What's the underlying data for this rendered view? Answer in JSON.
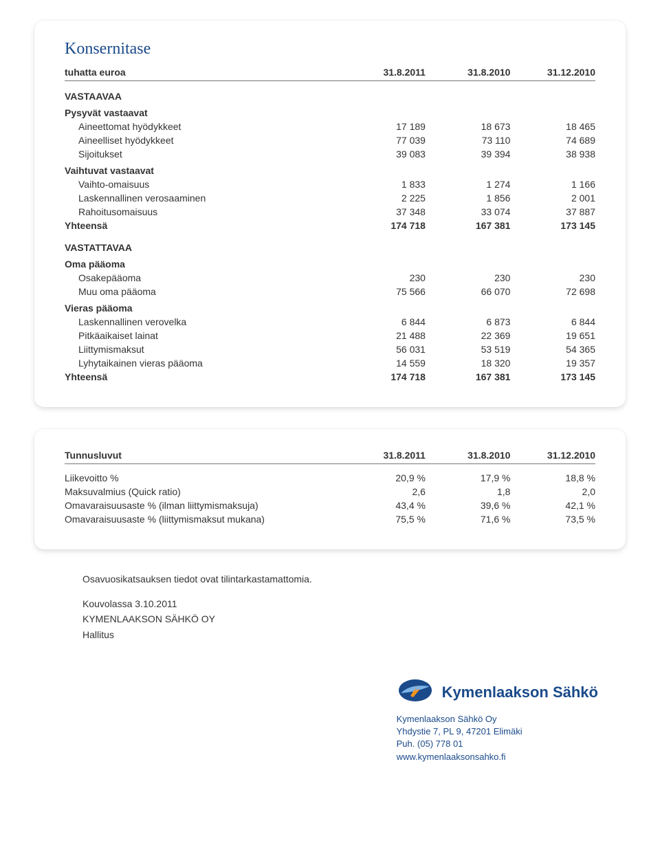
{
  "card1": {
    "title": "Konsernitase",
    "header": [
      "tuhatta euroa",
      "31.8.2011",
      "31.8.2010",
      "31.12.2010"
    ],
    "sections": [
      {
        "head": "VASTAAVAA",
        "groups": [
          {
            "label": "Pysyvät vastaavat",
            "rows": [
              [
                "Aineettomat hyödykkeet",
                "17 189",
                "18 673",
                "18 465"
              ],
              [
                "Aineelliset hyödykkeet",
                "77 039",
                "73 110",
                "74 689"
              ],
              [
                "Sijoitukset",
                "39 083",
                "39 394",
                "38 938"
              ]
            ]
          },
          {
            "label": "Vaihtuvat vastaavat",
            "rows": [
              [
                "Vaihto-omaisuus",
                "1 833",
                "1 274",
                "1 166"
              ],
              [
                "Laskennallinen verosaaminen",
                "2 225",
                "1 856",
                "2 001"
              ],
              [
                "Rahoitusomaisuus",
                "37 348",
                "33 074",
                "37 887"
              ]
            ]
          }
        ],
        "total": [
          "Yhteensä",
          "174 718",
          "167 381",
          "173 145"
        ]
      },
      {
        "head": "VASTATTAVAA",
        "groups": [
          {
            "label": "Oma pääoma",
            "rows": [
              [
                "Osakepääoma",
                "230",
                "230",
                "230"
              ],
              [
                "Muu oma pääoma",
                "75 566",
                "66 070",
                "72 698"
              ]
            ]
          },
          {
            "label": "Vieras pääoma",
            "rows": [
              [
                "Laskennallinen verovelka",
                "6 844",
                "6 873",
                "6 844"
              ],
              [
                "Pitkäaikaiset lainat",
                "21 488",
                "22 369",
                "19 651"
              ],
              [
                "Liittymismaksut",
                "56 031",
                "53 519",
                "54 365"
              ],
              [
                "Lyhytaikainen vieras pääoma",
                "14 559",
                "18 320",
                "19 357"
              ]
            ]
          }
        ],
        "total": [
          "Yhteensä",
          "174 718",
          "167 381",
          "173 145"
        ]
      }
    ]
  },
  "card2": {
    "header": [
      "Tunnusluvut",
      "31.8.2011",
      "31.8.2010",
      "31.12.2010"
    ],
    "rows": [
      [
        "Liikevoitto %",
        "20,9 %",
        "17,9 %",
        "18,8 %"
      ],
      [
        "Maksuvalmius (Quick ratio)",
        "2,6",
        "1,8",
        "2,0"
      ],
      [
        "Omavaraisuusaste % (ilman liittymismaksuja)",
        "43,4 %",
        "39,6 %",
        "42,1 %"
      ],
      [
        "Omavaraisuusaste % (liittymismaksut mukana)",
        "75,5 %",
        "71,6 %",
        "73,5 %"
      ]
    ]
  },
  "footer": {
    "line1": "Osavuosikatsauksen tiedot ovat tilintarkastamattomia.",
    "line2": "Kouvolassa 3.10.2011",
    "line3": "KYMENLAAKSON SÄHKÖ OY",
    "line4": "Hallitus"
  },
  "brand": {
    "name": "Kymenlaakson Sähkö",
    "company": "Kymenlaakson Sähkö Oy",
    "addr1": "Yhdystie 7, PL 9, 47201 Elimäki",
    "addr2": "Puh. (05) 778 01",
    "url": "www.kymenlaaksonsahko.fi",
    "logo_colors": {
      "blue": "#1a4a8a",
      "orange": "#f7941d",
      "light": "#7db4e8"
    }
  }
}
